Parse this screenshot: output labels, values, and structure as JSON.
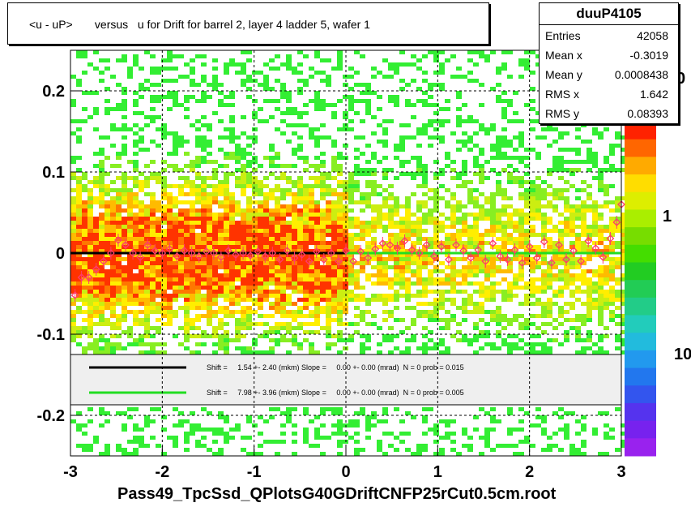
{
  "title": "<u - uP>       versus   u for Drift for barrel 2, layer 4 ladder 5, wafer 1",
  "stats": {
    "name": "duuP4105",
    "rows": [
      {
        "label": "Entries",
        "value": "42058"
      },
      {
        "label": "Mean x",
        "value": "-0.3019"
      },
      {
        "label": "Mean y",
        "value": "0.0008438"
      },
      {
        "label": "RMS x",
        "value": "1.642"
      },
      {
        "label": "RMS y",
        "value": "0.08393"
      }
    ]
  },
  "xaxis_title": "Pass49_TpcSsd_QPlotsG40GDriftCNFP25rCut0.5cm.root",
  "fit_legend": [
    {
      "text": "Shift =     1.54 +- 2.40 (mkm) Slope =     0.00 +- 0.00 (mrad)  N = 0 prob = 0.015",
      "color": "#000000"
    },
    {
      "text": "Shift =     7.98 +- 3.96 (mkm) Slope =     0.00 +- 0.00 (mrad)  N = 0 prob = 0.005",
      "color": "#22dd22"
    }
  ],
  "colorbar_labels": [
    "10",
    "1",
    "0"
  ],
  "chart_data": {
    "type": "heatmap",
    "xlim": [
      -3,
      3
    ],
    "ylim": [
      -0.25,
      0.25
    ],
    "xticks": [
      "-3",
      "-2",
      "-1",
      "0",
      "1",
      "2",
      "3"
    ],
    "yticks": [
      "-0.2",
      "-0.1",
      "0",
      "0.1",
      "0.2"
    ],
    "ytick_values": [
      -0.2,
      -0.1,
      0,
      0.1,
      0.2
    ],
    "xtick_values": [
      -3,
      -2,
      -1,
      0,
      1,
      2,
      3
    ],
    "grid": true,
    "series": [
      {
        "name": "profile",
        "points": [
          [
            -2.95,
            -0.052
          ],
          [
            -2.88,
            -0.03
          ],
          [
            -2.8,
            -0.03
          ],
          [
            -2.72,
            -0.02
          ],
          [
            -2.64,
            -0.01
          ],
          [
            -2.56,
            0.0
          ],
          [
            -2.48,
            0.016
          ],
          [
            -2.4,
            0.01
          ],
          [
            -2.32,
            0.0
          ],
          [
            -2.24,
            -0.005
          ],
          [
            -2.16,
            0.01
          ],
          [
            -2.08,
            0.003
          ],
          [
            -2.0,
            0.0
          ],
          [
            -1.92,
            0.005
          ],
          [
            -1.84,
            -0.004
          ],
          [
            -1.76,
            0.003
          ],
          [
            -1.68,
            0.0
          ],
          [
            -1.6,
            -0.004
          ],
          [
            -1.52,
            0.002
          ],
          [
            -1.44,
            0.0
          ],
          [
            -1.36,
            -0.005
          ],
          [
            -1.28,
            0.003
          ],
          [
            -1.2,
            -0.002
          ],
          [
            -1.12,
            0.0
          ],
          [
            -1.04,
            -0.003
          ],
          [
            -0.96,
            0.002
          ],
          [
            -0.88,
            -0.004
          ],
          [
            -0.8,
            0.0
          ],
          [
            -0.72,
            -0.008
          ],
          [
            -0.64,
            0.003
          ],
          [
            -0.56,
            -0.006
          ],
          [
            -0.48,
            -0.002
          ],
          [
            -0.4,
            -0.01
          ],
          [
            -0.32,
            0.002
          ],
          [
            -0.24,
            -0.008
          ],
          [
            -0.16,
            0.0
          ],
          [
            -0.08,
            -0.01
          ],
          [
            0.0,
            0.003
          ],
          [
            0.08,
            -0.01
          ],
          [
            0.16,
            0.002
          ],
          [
            0.24,
            -0.006
          ],
          [
            0.32,
            0.005
          ],
          [
            0.4,
            0.012
          ],
          [
            0.48,
            0.01
          ],
          [
            0.56,
            0.006
          ],
          [
            0.64,
            0.015
          ],
          [
            0.72,
            0.004
          ],
          [
            0.8,
            0.0
          ],
          [
            0.88,
            0.01
          ],
          [
            0.96,
            -0.004
          ],
          [
            1.04,
            0.008
          ],
          [
            1.12,
            -0.008
          ],
          [
            1.2,
            0.01
          ],
          [
            1.28,
            0.003
          ],
          [
            1.36,
            -0.006
          ],
          [
            1.44,
            0.004
          ],
          [
            1.52,
            -0.01
          ],
          [
            1.6,
            0.012
          ],
          [
            1.68,
            -0.004
          ],
          [
            1.76,
            -0.008
          ],
          [
            1.84,
            0.004
          ],
          [
            1.92,
            -0.012
          ],
          [
            2.0,
            0.008
          ],
          [
            2.08,
            -0.006
          ],
          [
            2.16,
            0.014
          ],
          [
            2.24,
            -0.012
          ],
          [
            2.32,
            0.01
          ],
          [
            2.4,
            -0.008
          ],
          [
            2.48,
            0.003
          ],
          [
            2.56,
            -0.01
          ],
          [
            2.64,
            0.015
          ],
          [
            2.72,
            0.006
          ],
          [
            2.8,
            -0.005
          ],
          [
            2.88,
            0.018
          ],
          [
            2.95,
            0.038
          ],
          [
            3.0,
            0.06
          ]
        ]
      },
      {
        "name": "fit-black",
        "x": [
          -3,
          0
        ],
        "y": [
          0.0,
          0.0
        ]
      },
      {
        "name": "fit-green",
        "x": [
          0,
          3
        ],
        "y": [
          0.0,
          0.0
        ]
      }
    ]
  },
  "colors": {
    "grid": "#000000",
    "marker": "#ff3b6b",
    "fit_black": "#000000",
    "fit_green": "#22dd22",
    "legend_bg": "#efefef"
  }
}
